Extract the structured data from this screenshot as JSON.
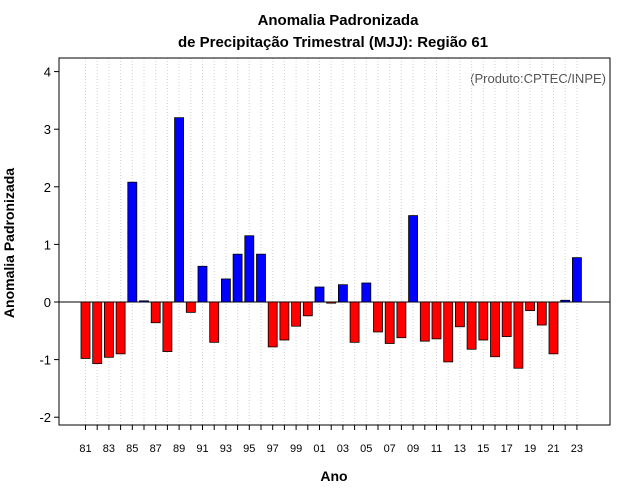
{
  "chart_data": {
    "type": "bar",
    "title_line1": "Anomalia Padronizada",
    "title_line2": "de Precipitação Trimestral (MJJ): Região 61",
    "xlabel": "Ano",
    "ylabel": "Anomalia Padronizada",
    "annotation": "(Produto:CPTEC/INPE)",
    "ylim": [
      -2.2,
      4.2
    ],
    "yticks": [
      -2,
      -1,
      0,
      1,
      2,
      3,
      4
    ],
    "grid": "vertical dotted",
    "categories": [
      "81",
      "82",
      "83",
      "84",
      "85",
      "86",
      "87",
      "88",
      "89",
      "90",
      "91",
      "92",
      "93",
      "94",
      "95",
      "96",
      "97",
      "98",
      "99",
      "00",
      "01",
      "02",
      "03",
      "04",
      "05",
      "06",
      "07",
      "08",
      "09",
      "10",
      "11",
      "12",
      "13",
      "14",
      "15",
      "16",
      "17",
      "18",
      "19",
      "20",
      "21",
      "22",
      "23"
    ],
    "x_tick_labels": [
      "81",
      "83",
      "85",
      "87",
      "89",
      "91",
      "93",
      "95",
      "97",
      "99",
      "01",
      "03",
      "05",
      "07",
      "09",
      "11",
      "13",
      "15",
      "17",
      "19",
      "21",
      "23"
    ],
    "values": [
      -0.98,
      -1.07,
      -0.96,
      -0.9,
      2.08,
      0.02,
      -0.36,
      -0.86,
      3.2,
      -0.18,
      0.62,
      -0.7,
      0.4,
      0.83,
      1.15,
      0.83,
      -0.78,
      -0.66,
      -0.42,
      -0.24,
      0.26,
      -0.02,
      0.3,
      -0.7,
      0.33,
      -0.52,
      -0.72,
      -0.62,
      1.5,
      -0.68,
      -0.64,
      -1.04,
      -0.43,
      -0.82,
      -0.66,
      -0.95,
      -0.6,
      -1.15,
      -0.15,
      -0.4,
      -0.9,
      0.03,
      0.77
    ],
    "colors": {
      "positive": "#0000ff",
      "negative": "#ff0000",
      "outline": "#000000",
      "grid": "#d3d3d3"
    }
  }
}
